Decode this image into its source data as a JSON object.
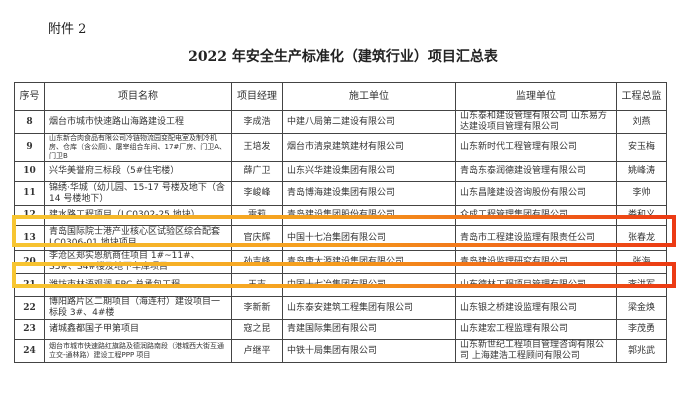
{
  "attachment": "附件 2",
  "title": "2022 年安全生产标准化（建筑行业）项目汇总表",
  "headers": [
    "序号",
    "项目名称",
    "项目经理",
    "施工单位",
    "监理单位",
    "工程总监"
  ],
  "rows": [
    {
      "no": "8",
      "name": "烟台市城市快速路山海路建设工程",
      "manager": "李成浩",
      "builder": "中建八局第二建设有限公司",
      "supervisor": "山东泰和建设管理有限公司 山东易方达建设项目管理有限公司",
      "director": "刘燕",
      "h": 20
    },
    {
      "no": "9",
      "name": "山东新合肉食品有限公司冷链物流园变配电室及制冷机房、仓库（含公厕）、屠宰组合车间、17#厂房、门卫A、门卫B",
      "manager": "王培发",
      "builder": "烟台市清泉建筑建材有限公司",
      "supervisor": "山东新时代工程管理有限公司",
      "director": "安玉梅",
      "h": 24
    },
    {
      "no": "10",
      "name": "兴华美誉府三标段（5#住宅楼）",
      "manager": "薛广卫",
      "builder": "山东兴华建设集团有限公司",
      "supervisor": "青岛东泰润德建设管理有限公司",
      "director": "姚峰涛",
      "h": 20
    },
    {
      "no": "11",
      "name": "锦绣·华城（幼儿园、15-17 号楼及地下（含 14 号楼地下）",
      "manager": "李峻峰",
      "builder": "青岛博海建设集团有限公司",
      "supervisor": "山东昌隆建设咨询股份有限公司",
      "director": "李帅",
      "h": 24
    },
    {
      "no": "12",
      "name": "建水路工程项目（LC0302-25 地块）",
      "manager": "雷莉",
      "builder": "青岛建设集团股份有限公司",
      "supervisor": "众成工程管理集团有限公司",
      "director": "娄和义",
      "h": 20
    },
    {
      "no": "13",
      "name": "青岛国际院士港产业核心区试验区综合配套 LC0306-01 地块项目",
      "manager": "官庆辉",
      "builder": "中国十七冶集团有限公司",
      "supervisor": "青岛市工程建设监理有限责任公司",
      "director": "张春龙",
      "h": 25
    },
    {
      "no": "20",
      "name": "李沧区郑实恩航商住项目 1#~11#、S3#、S4#楼及地下车库项目",
      "manager": "孙吉峰",
      "builder": "青岛康大源建设集团有限公司",
      "supervisor": "青岛建设监理研究有限公司",
      "director": "张海",
      "h": 20
    },
    {
      "no": "21",
      "name": "潍坊市林语观澜 EPC 总承包工程",
      "manager": "王志",
      "builder": "中国十七冶集团有限公司",
      "supervisor": "山东德林工程项目管理有限公司",
      "director": "李洪军",
      "h": 23
    },
    {
      "no": "22",
      "name": "博阳路片区二期项目（海连村）建设项目一标段 3#、4#楼",
      "manager": "李新新",
      "builder": "山东泰安建筑工程集团有限公司",
      "supervisor": "山东银之桥建设监理有限公司",
      "director": "梁金焕",
      "h": 23
    },
    {
      "no": "23",
      "name": "诸城鑫都国子甲第项目",
      "manager": "寇之昆",
      "builder": "青建国际集团有限公司",
      "supervisor": "山东建宏工程监理有限公司",
      "director": "李茂勇",
      "h": 20
    },
    {
      "no": "24",
      "name": "烟台市城市快速路红旗路及德润路南段（港城西大街互通立交-通林路）建设工程PPP 项目",
      "manager": "卢继平",
      "builder": "中铁十局集团有限公司",
      "supervisor": "山东新世纪工程项目管理咨询有限公司 上海建浩工程顾问有限公司",
      "director": "郭兆武",
      "h": 23
    }
  ],
  "highlight_colors": [
    "#f7c531",
    "#ec3a14"
  ]
}
